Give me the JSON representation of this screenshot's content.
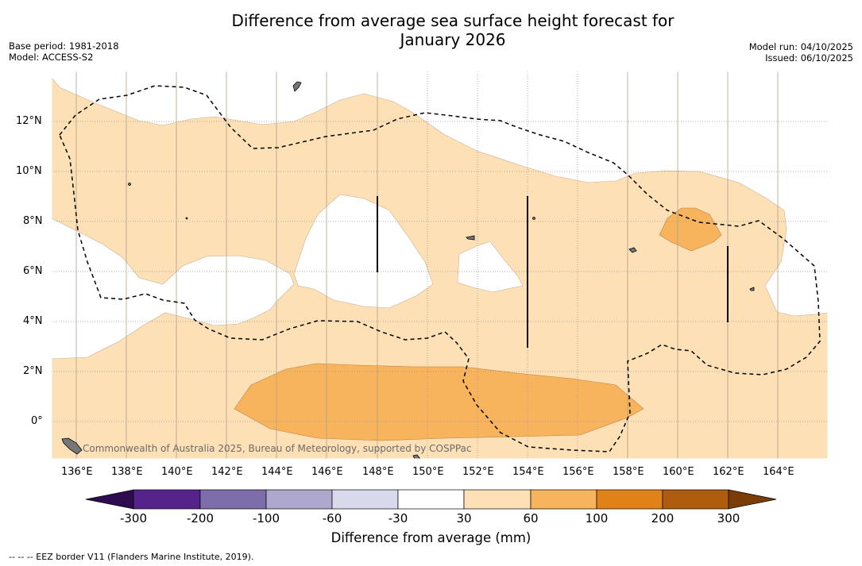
{
  "title": "Difference from average sea surface height forecast for January 2026",
  "title_line1": "Difference from average sea surface height forecast for",
  "title_line2": "January 2026",
  "base_period": "Base period: 1981-2018",
  "model": "Model: ACCESS-S2",
  "model_run": "Model run: 04/10/2025",
  "issued": "Issued: 06/10/2025",
  "lat_labels": [
    "12°N",
    "10°N",
    "8°N",
    "6°N",
    "4°N",
    "2°N",
    "0°"
  ],
  "lon_labels": [
    "136°E",
    "138°E",
    "140°E",
    "142°E",
    "144°E",
    "146°E",
    "148°E",
    "150°E",
    "152°E",
    "154°E",
    "156°E",
    "158°E",
    "160°E",
    "162°E",
    "164°E"
  ],
  "copyright": "Commonwealth of Australia 2025, Bureau of Meteorology, supported by COSPPac",
  "colorbar": {
    "title": "Difference from average (mm)",
    "tick_labels": [
      "-300",
      "-200",
      "-100",
      "-60",
      "-30",
      "30",
      "60",
      "100",
      "200",
      "300"
    ],
    "colors": [
      "#2e0c4f",
      "#55248a",
      "#7d6eab",
      "#aea8cf",
      "#d8d9eb",
      "#ffffff",
      "#fde0b5",
      "#f8b35d",
      "#e08218",
      "#b05c0e",
      "#7a3d08"
    ]
  },
  "footer": "--  --  -- EEZ border V11 (Flanders Marine Institute, 2019)."
}
